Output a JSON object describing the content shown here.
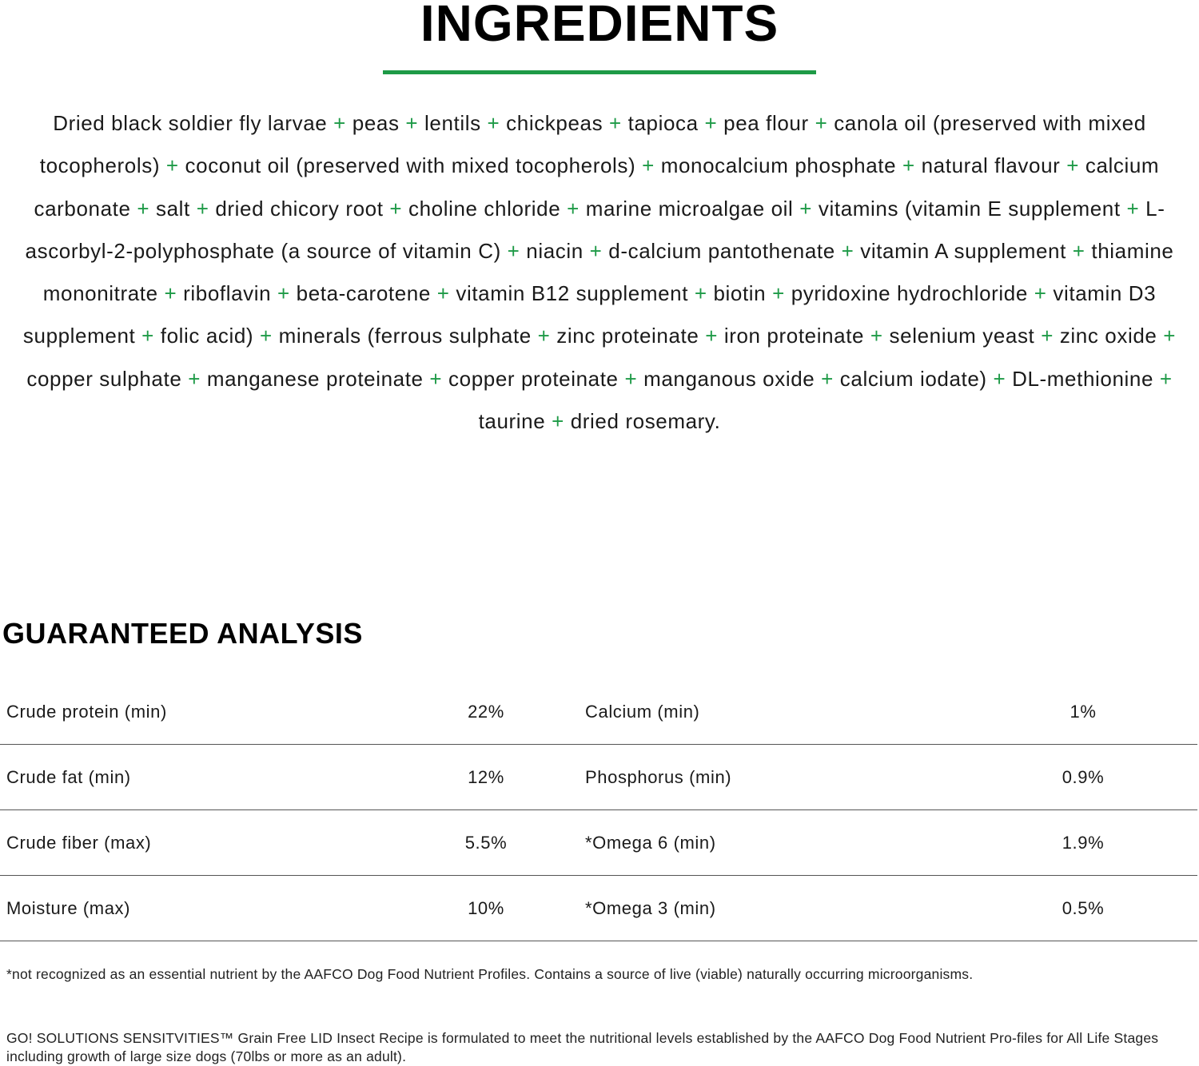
{
  "colors": {
    "accent": "#1e9a47"
  },
  "ingredients_title": "INGREDIENTS",
  "ingredients": [
    "Dried black soldier fly larvae",
    "peas",
    "lentils",
    "chickpeas",
    "tapioca",
    "pea flour",
    "canola oil (preserved with mixed tocopherols)",
    "coconut oil (preserved with mixed tocopherols)",
    "monocalcium phosphate",
    "natural flavour",
    "calcium carbonate",
    "salt",
    "dried chicory root",
    "choline chloride",
    "marine microalgae oil",
    "vitamins (vitamin E supplement",
    "L-ascorbyl-2-polyphosphate (a source of vitamin C)",
    "niacin",
    "d-calcium pantothenate",
    "vitamin A supplement",
    "thiamine mononitrate",
    "riboflavin",
    "beta-carotene",
    "vitamin B12 supplement",
    "biotin",
    "pyridoxine hydrochloride",
    "vitamin D3 supplement",
    "folic acid)",
    "minerals (ferrous sulphate",
    "zinc proteinate",
    "iron proteinate",
    "selenium yeast",
    "zinc oxide",
    "copper sulphate",
    "manganese proteinate",
    "copper proteinate",
    "manganous oxide",
    "calcium iodate)",
    "DL-methionine",
    "taurine",
    "dried rosemary."
  ],
  "separator": "+",
  "analysis": {
    "title": "GUARANTEED ANALYSIS",
    "rows": [
      {
        "left_label": "Crude protein (min)",
        "left_value": "22%",
        "right_label": "Calcium (min)",
        "right_value": "1%"
      },
      {
        "left_label": "Crude fat (min)",
        "left_value": "12%",
        "right_label": "Phosphorus (min)",
        "right_value": "0.9%"
      },
      {
        "left_label": "Crude fiber (max)",
        "left_value": "5.5%",
        "right_label": "*Omega 6 (min)",
        "right_value": "1.9%"
      },
      {
        "left_label": "Moisture (max)",
        "left_value": "10%",
        "right_label": "*Omega 3 (min)",
        "right_value": "0.5%"
      }
    ]
  },
  "footnote": "*not recognized as an essential nutrient by the AAFCO Dog Food Nutrient Profiles. Contains a source of live (viable) naturally occurring microorganisms.",
  "statement": "GO! SOLUTIONS SENSITVITIES™ Grain Free LID Insect Recipe is formulated to meet the nutritional levels established by the AAFCO Dog Food Nutrient Pro-files for All Life Stages including growth of large size dogs (70lbs or more as an adult)."
}
